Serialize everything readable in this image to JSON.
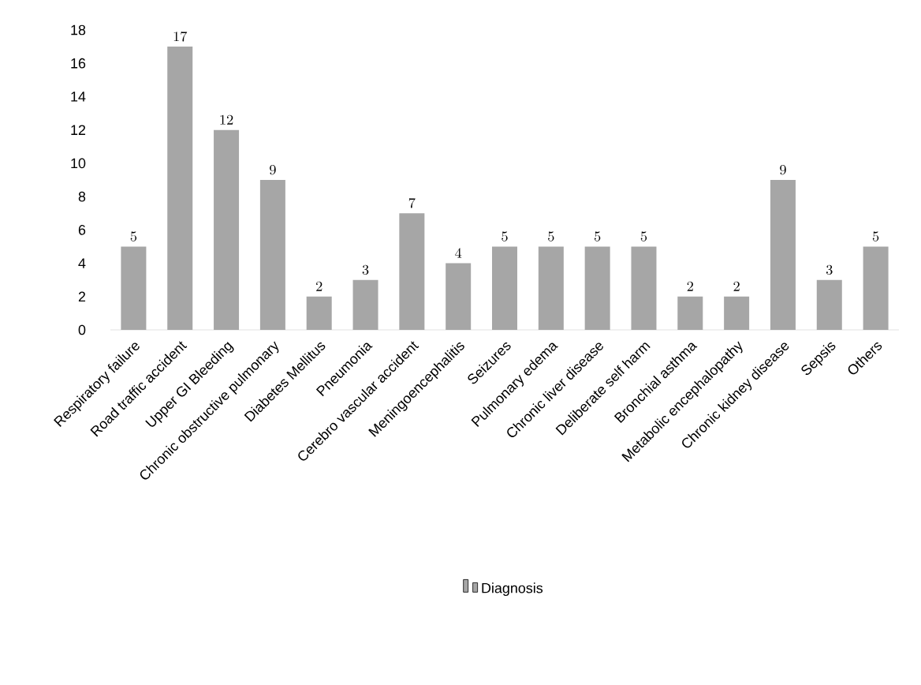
{
  "chart_data": {
    "type": "bar",
    "categories": [
      "Respiratory failure",
      "Road traffic accident",
      "Upper GI Bleeding",
      "Chronic obstructive pulmonary",
      "Diabetes Mellitus",
      "Pneumonia",
      "Cerebro vascular accident",
      "Meningoencephalitis",
      "Seizures",
      "Pulmonary edema",
      "Chronic liver disease",
      "Deliberate self harm",
      "Bronchial asthma",
      "Metabolic encephalopathy",
      "Chronic kidney disease",
      "Sepsis",
      "Others"
    ],
    "series": [
      {
        "name": "Diagnosis",
        "color": "#a6a6a6",
        "values": [
          5,
          17,
          12,
          9,
          2,
          3,
          7,
          4,
          5,
          5,
          5,
          5,
          2,
          2,
          9,
          3,
          5
        ]
      }
    ],
    "ylim": [
      0,
      18
    ],
    "yticks": [
      0,
      2,
      4,
      6,
      8,
      10,
      12,
      14,
      16,
      18
    ],
    "data_labels": true,
    "legend": "bottom",
    "grid": false
  }
}
